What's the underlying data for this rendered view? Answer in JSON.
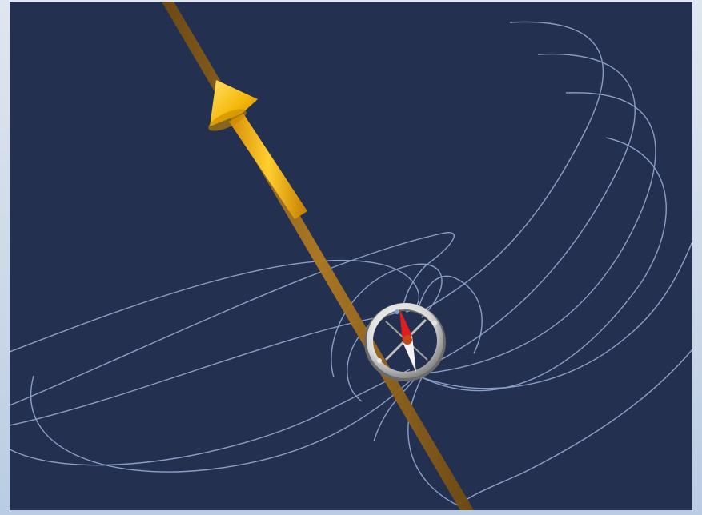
{
  "scene": {
    "background_color": "#243050",
    "frame_color": "#cfdbe9",
    "field_line_color": "#9db3db",
    "wire_color": "#a26e1c",
    "current_arrow_color": "#f2b10a",
    "compass": {
      "ring_color": "#f0f0f0",
      "north_needle_color": "#e21d1d",
      "south_needle_color": "#f4f4f4",
      "pivot_color": "#c34a1a"
    },
    "icons": [
      "current-direction-arrow-icon",
      "compass-icon"
    ]
  }
}
